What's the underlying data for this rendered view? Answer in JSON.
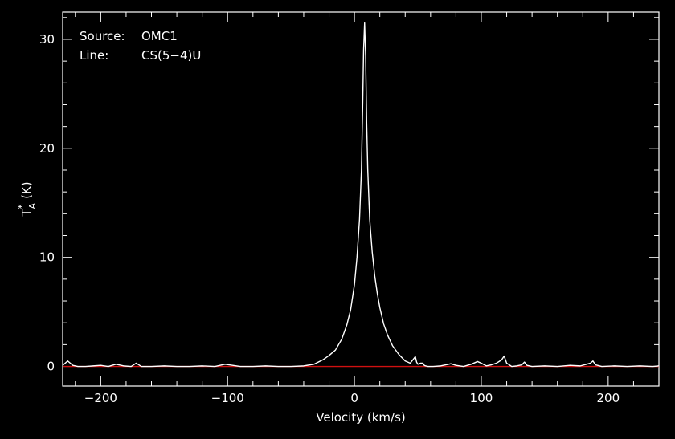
{
  "chart_data": {
    "type": "line",
    "title": "",
    "xlabel": "Velocity (km/s)",
    "ylabel": {
      "base": "T",
      "superscript": "*",
      "subscript": "A",
      "unit": "(K)"
    },
    "xlim": [
      -230,
      240
    ],
    "ylim": [
      -1.8,
      32.5
    ],
    "xticks": [
      -200,
      -100,
      0,
      100,
      200
    ],
    "xtick_labels": [
      "−200",
      "−100",
      "0",
      "100",
      "200"
    ],
    "yticks": [
      0,
      10,
      20,
      30
    ],
    "ytick_labels": [
      "0",
      "10",
      "20",
      "30"
    ],
    "annotations": [
      {
        "key": "Source:",
        "value": "OMC1"
      },
      {
        "key": "Line:",
        "value": "CS(5−4)U"
      }
    ],
    "colors": {
      "background": "#000000",
      "axes": "#ffffff",
      "spectrum": "#ffffff",
      "baseline": "#d01010"
    },
    "baseline": {
      "y": 0
    },
    "series": [
      {
        "x": [
          -230,
          -226,
          -222,
          -218,
          -212,
          -206,
          -200,
          -194,
          -188,
          -182,
          -176,
          -172,
          -168,
          -160,
          -150,
          -140,
          -130,
          -120,
          -110,
          -102,
          -96,
          -90,
          -80,
          -70,
          -60,
          -50,
          -40,
          -32,
          -25,
          -20,
          -15,
          -10,
          -6,
          -3,
          0,
          2,
          4,
          5.5,
          6.5,
          7.2,
          8,
          8.8,
          9.6,
          10.5,
          12,
          14,
          16,
          18,
          20,
          23,
          26,
          30,
          35,
          40,
          44,
          46,
          48,
          49,
          50,
          52,
          54,
          55,
          56,
          58,
          62,
          68,
          72,
          76,
          80,
          86,
          92,
          97,
          100,
          104,
          108,
          112,
          116,
          118,
          120,
          124,
          128,
          132,
          134,
          136,
          140,
          150,
          160,
          170,
          178,
          183,
          186,
          188,
          190,
          195,
          205,
          215,
          225,
          235,
          240
        ],
        "y": [
          0.1,
          0.5,
          0.1,
          0.0,
          0.0,
          0.05,
          0.1,
          0.0,
          0.2,
          0.05,
          0.0,
          0.3,
          0.0,
          0.0,
          0.05,
          0.0,
          0.0,
          0.05,
          0.0,
          0.2,
          0.1,
          0.0,
          0.0,
          0.05,
          0.0,
          0.0,
          0.05,
          0.2,
          0.6,
          1.0,
          1.5,
          2.5,
          3.8,
          5.2,
          7.5,
          10.0,
          13.5,
          18.0,
          24.0,
          29.0,
          31.5,
          28.5,
          22.5,
          18.0,
          13.5,
          10.5,
          8.3,
          6.7,
          5.4,
          3.9,
          2.9,
          1.9,
          1.1,
          0.5,
          0.3,
          0.6,
          0.9,
          0.4,
          0.2,
          0.3,
          0.3,
          0.1,
          0.05,
          0.0,
          0.0,
          0.05,
          0.15,
          0.25,
          0.1,
          0.0,
          0.2,
          0.45,
          0.3,
          0.05,
          0.15,
          0.3,
          0.6,
          0.95,
          0.3,
          0.0,
          0.05,
          0.15,
          0.4,
          0.1,
          0.0,
          0.05,
          0.0,
          0.1,
          0.05,
          0.2,
          0.3,
          0.5,
          0.15,
          0.0,
          0.05,
          0.0,
          0.05,
          0.0,
          0.05
        ]
      }
    ]
  }
}
